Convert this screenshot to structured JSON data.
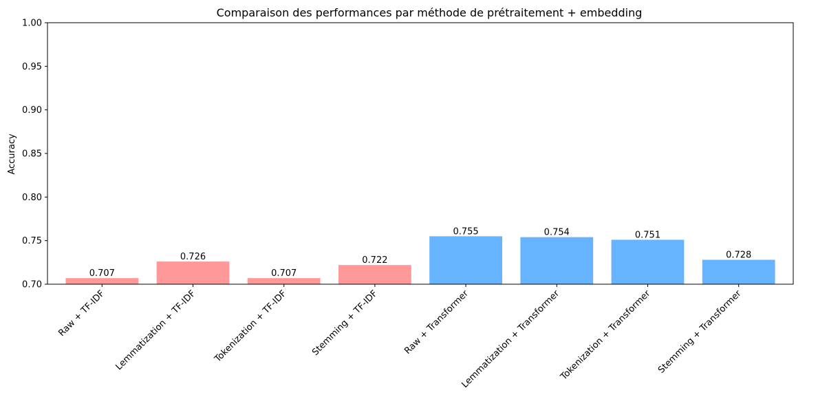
{
  "chart_data": {
    "type": "bar",
    "title": "Comparaison des performances par méthode de prétraitement + embedding",
    "xlabel": "",
    "ylabel": "Accuracy",
    "ylim": [
      0.7,
      1.0
    ],
    "yticks": [
      "0.70",
      "0.75",
      "0.80",
      "0.85",
      "0.90",
      "0.95",
      "1.00"
    ],
    "grid": false,
    "categories": [
      "Raw + TF-IDF",
      "Lemmatization + TF-IDF",
      "Tokenization + TF-IDF",
      "Stemming + TF-IDF",
      "Raw + Transformer",
      "Lemmatization + Transformer",
      "Tokenization + Transformer",
      "Stemming + Transformer"
    ],
    "values": [
      0.707,
      0.726,
      0.707,
      0.722,
      0.755,
      0.754,
      0.751,
      0.728
    ],
    "value_labels": [
      "0.707",
      "0.726",
      "0.707",
      "0.722",
      "0.755",
      "0.754",
      "0.751",
      "0.728"
    ],
    "colors": [
      "#ff9999",
      "#ff9999",
      "#ff9999",
      "#ff9999",
      "#66b3ff",
      "#66b3ff",
      "#66b3ff",
      "#66b3ff"
    ]
  }
}
